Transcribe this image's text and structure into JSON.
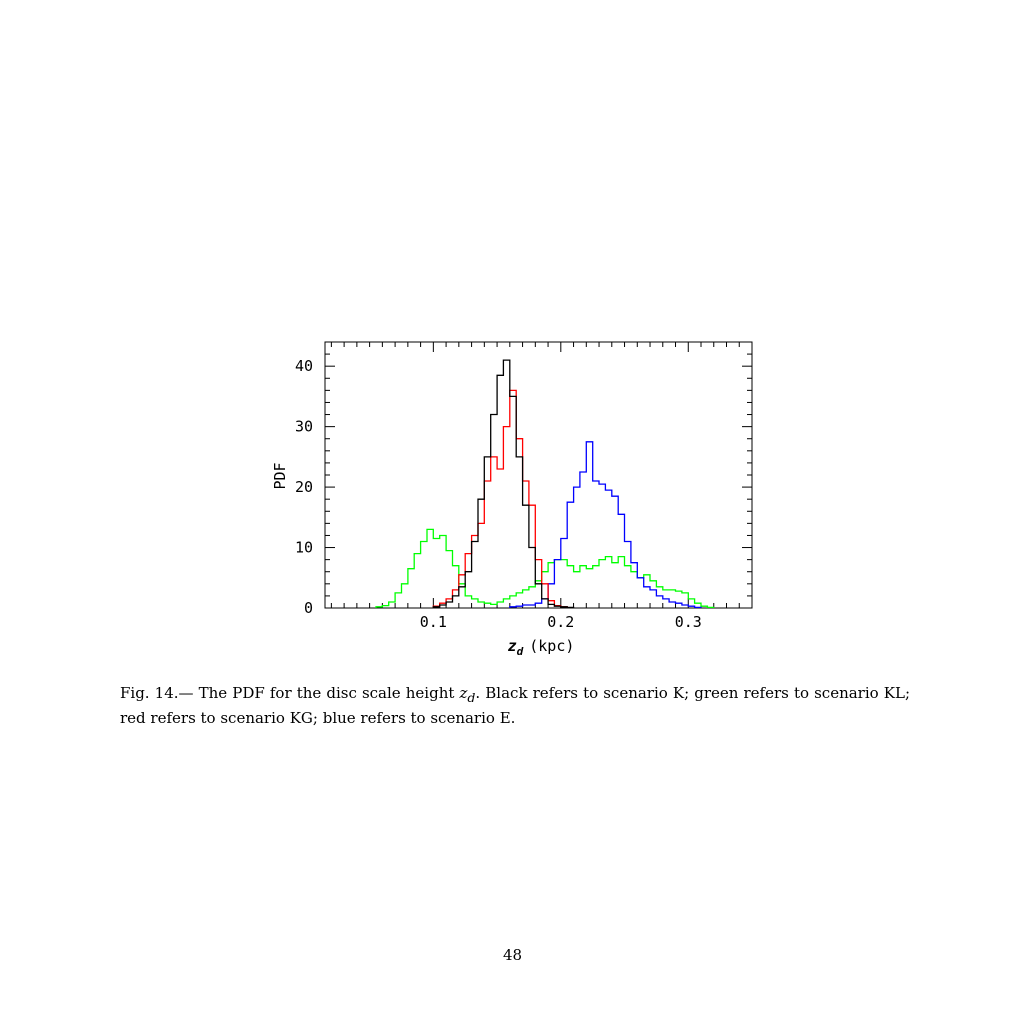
{
  "chart_data": {
    "type": "histogram",
    "xlabel": "z_d (kpc)",
    "xlabel_main": "z",
    "xlabel_sub": "d",
    "xlabel_unit": "(kpc)",
    "ylabel": "PDF",
    "xlim": [
      0.015,
      0.35
    ],
    "ylim": [
      0,
      44
    ],
    "x_ticks": [
      0.1,
      0.2,
      0.3
    ],
    "x_tick_labels": [
      "0.1",
      "0.2",
      "0.3"
    ],
    "y_ticks": [
      0,
      10,
      20,
      30,
      40
    ],
    "y_tick_labels": [
      "0",
      "10",
      "20",
      "30",
      "40"
    ],
    "bin_width": 0.005,
    "series": [
      {
        "scenario": "K",
        "color": "#000000",
        "x_start": 0.1,
        "values": [
          0.2,
          0.5,
          1,
          2,
          3.5,
          6,
          11,
          18,
          25,
          32,
          38.5,
          41,
          35,
          25,
          17,
          10,
          4,
          1.5,
          0.6,
          0.3,
          0.2,
          0.1
        ]
      },
      {
        "scenario": "KG",
        "color": "#ff0000",
        "x_start": 0.1,
        "values": [
          0.3,
          0.8,
          1.5,
          3,
          5.5,
          9,
          12,
          14,
          21,
          25,
          23,
          30,
          36,
          28,
          21,
          17,
          8,
          4,
          1.2,
          0.4,
          0.2
        ]
      },
      {
        "scenario": "KL",
        "color": "#00ff00",
        "x_start": 0.055,
        "values": [
          0.2,
          0.4,
          1,
          2.5,
          4,
          6.5,
          9,
          11,
          13,
          11.5,
          12,
          9.5,
          7,
          4,
          2,
          1.5,
          1,
          0.8,
          0.6,
          1,
          1.5,
          2,
          2.5,
          3,
          3.5,
          4.5,
          6,
          7.5,
          8,
          8,
          7,
          6,
          7,
          6.5,
          7,
          8,
          8.5,
          7.5,
          8.5,
          7,
          6,
          5,
          5.5,
          4.5,
          3.5,
          3,
          3,
          2.8,
          2.5,
          1.5,
          0.8,
          0.3,
          0.1
        ]
      },
      {
        "scenario": "E",
        "color": "#0000ff",
        "x_start": 0.16,
        "values": [
          0.2,
          0.3,
          0.5,
          0.5,
          0.8,
          1.5,
          4,
          8,
          11.5,
          17.5,
          20,
          22.5,
          27.5,
          21,
          20.5,
          19.5,
          18.5,
          15.5,
          11,
          7.5,
          5,
          3.5,
          3,
          2,
          1.5,
          1,
          0.8,
          0.5,
          0.3,
          0.1
        ]
      }
    ]
  },
  "caption": {
    "text_before": "Fig. 14.— The PDF for the disc scale height ",
    "math_main": "z",
    "math_sub": "d",
    "text_after": ". Black refers to scenario K; green refers to scenario KL; red refers to scenario KG; blue refers to scenario E."
  },
  "page_number": "48"
}
